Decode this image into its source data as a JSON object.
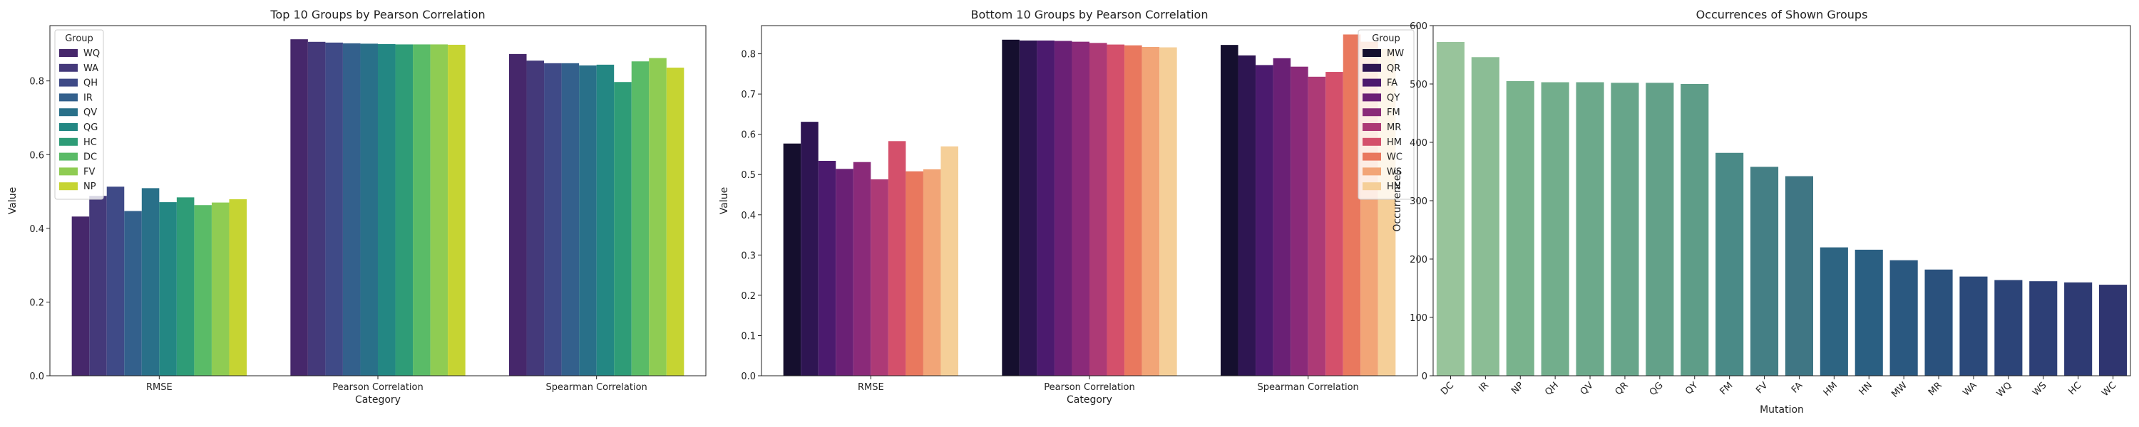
{
  "chart_data": [
    {
      "type": "bar",
      "title": "Top 10 Groups by Pearson Correlation",
      "xlabel": "Category",
      "ylabel": "Value",
      "ylim": [
        0,
        0.95
      ],
      "yticks": [
        "0.0",
        "0.2",
        "0.4",
        "0.6",
        "0.8"
      ],
      "categories": [
        "RMSE",
        "Pearson Correlation",
        "Spearman Correlation"
      ],
      "legend_title": "Group",
      "legend_position": "upper-left",
      "series": [
        {
          "name": "WQ",
          "color": "#46276b",
          "values": [
            0.432,
            0.913,
            0.873
          ]
        },
        {
          "name": "WA",
          "color": "#44397a",
          "values": [
            0.488,
            0.906,
            0.855
          ]
        },
        {
          "name": "QH",
          "color": "#3f4a87",
          "values": [
            0.513,
            0.904,
            0.848
          ]
        },
        {
          "name": "IR",
          "color": "#33608c",
          "values": [
            0.447,
            0.902,
            0.848
          ]
        },
        {
          "name": "QV",
          "color": "#297089",
          "values": [
            0.509,
            0.901,
            0.842
          ]
        },
        {
          "name": "QG",
          "color": "#238783",
          "values": [
            0.471,
            0.9,
            0.844
          ]
        },
        {
          "name": "HC",
          "color": "#2e9c77",
          "values": [
            0.484,
            0.899,
            0.797
          ]
        },
        {
          "name": "DC",
          "color": "#5abb67",
          "values": [
            0.463,
            0.899,
            0.853
          ]
        },
        {
          "name": "FV",
          "color": "#8fcc53",
          "values": [
            0.47,
            0.899,
            0.862
          ]
        },
        {
          "name": "NP",
          "color": "#c6d432",
          "values": [
            0.479,
            0.898,
            0.836
          ]
        }
      ]
    },
    {
      "type": "bar",
      "title": "Bottom 10 Groups by Pearson Correlation",
      "xlabel": "Category",
      "ylabel": "Value",
      "ylim": [
        0,
        0.87
      ],
      "yticks": [
        "0.0",
        "0.1",
        "0.2",
        "0.3",
        "0.4",
        "0.5",
        "0.6",
        "0.7",
        "0.8"
      ],
      "categories": [
        "RMSE",
        "Pearson Correlation",
        "Spearman Correlation"
      ],
      "legend_title": "Group",
      "legend_position": "upper-right",
      "series": [
        {
          "name": "MW",
          "color": "#150f2e",
          "values": [
            0.577,
            0.835,
            0.822
          ]
        },
        {
          "name": "QR",
          "color": "#2e1552",
          "values": [
            0.631,
            0.833,
            0.796
          ]
        },
        {
          "name": "FA",
          "color": "#4b1a6e",
          "values": [
            0.534,
            0.833,
            0.772
          ]
        },
        {
          "name": "QY",
          "color": "#6a2075",
          "values": [
            0.514,
            0.832,
            0.789
          ]
        },
        {
          "name": "FM",
          "color": "#8a2a79",
          "values": [
            0.531,
            0.83,
            0.768
          ]
        },
        {
          "name": "MR",
          "color": "#ad3a76",
          "values": [
            0.488,
            0.827,
            0.743
          ]
        },
        {
          "name": "HM",
          "color": "#d4506b",
          "values": [
            0.583,
            0.823,
            0.755
          ]
        },
        {
          "name": "WC",
          "color": "#e9785e",
          "values": [
            0.508,
            0.821,
            0.848
          ]
        },
        {
          "name": "WS",
          "color": "#f2a577",
          "values": [
            0.513,
            0.817,
            0.83
          ]
        },
        {
          "name": "HN",
          "color": "#f5cf98",
          "values": [
            0.57,
            0.816,
            0.812
          ]
        }
      ]
    },
    {
      "type": "bar",
      "title": "Occurrences of Shown Groups",
      "xlabel": "Mutation",
      "ylabel": "Occurrences",
      "ylim": [
        0,
        600
      ],
      "yticks": [
        "0",
        "100",
        "200",
        "300",
        "400",
        "500",
        "600"
      ],
      "categories": [
        "DC",
        "IR",
        "NP",
        "QH",
        "QV",
        "QR",
        "QG",
        "QY",
        "FM",
        "FV",
        "FA",
        "HM",
        "HN",
        "MW",
        "MR",
        "WA",
        "WQ",
        "WS",
        "HC",
        "WC"
      ],
      "values": [
        572,
        546,
        505,
        503,
        503,
        502,
        502,
        500,
        382,
        358,
        342,
        220,
        216,
        198,
        182,
        170,
        164,
        162,
        160,
        156
      ],
      "colors": [
        "#98c49b",
        "#8bbd95",
        "#79b38d",
        "#72ae8c",
        "#6ca98b",
        "#67a58a",
        "#63a189",
        "#5e9d88",
        "#4a8a87",
        "#447f85",
        "#3f7684",
        "#2d6482",
        "#2a5f82",
        "#2a5880",
        "#2a517d",
        "#2b497a",
        "#2c4478",
        "#2d3f76",
        "#2e3a73",
        "#2f3570"
      ]
    }
  ]
}
